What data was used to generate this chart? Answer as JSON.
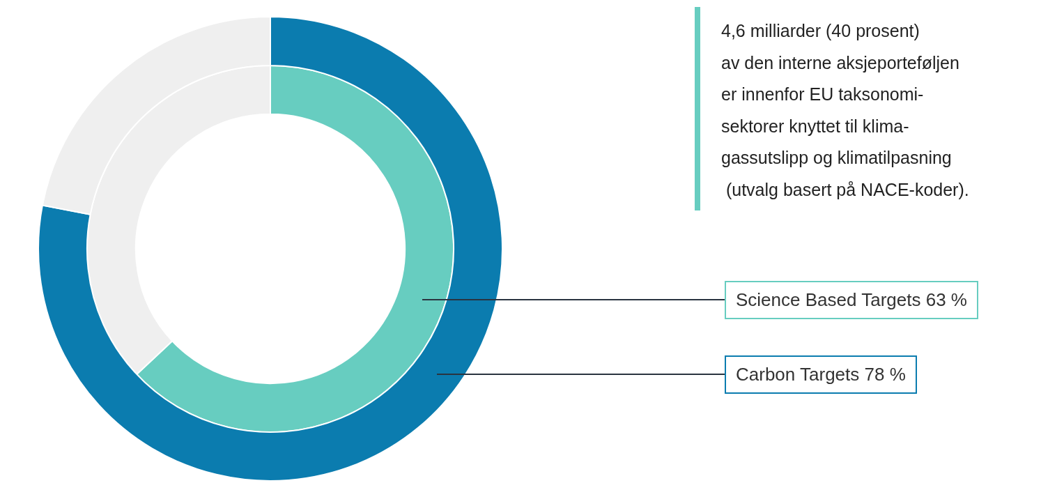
{
  "chart_data": {
    "type": "donut",
    "series": [
      {
        "name": "Carbon Targets",
        "values": [
          78,
          22
        ],
        "colors": [
          "#0b7caf",
          "#efefef"
        ],
        "value_labels": [
          "78 %",
          null
        ]
      },
      {
        "name": "Science Based Targets",
        "values": [
          63,
          37
        ],
        "colors": [
          "#67cdc0",
          "#efefef"
        ],
        "value_labels": [
          "63 %",
          null
        ]
      }
    ],
    "annotations": [
      "4,6 milliarder (40 prosent)\nav den interne aksjeporteføljen\ner innenfor EU taksonomi-\nsektorer knyttet til klima-\ngassutslipp og klimatilpasning\n (utvalg basert på NACE-koder)."
    ],
    "legend": false
  }
}
